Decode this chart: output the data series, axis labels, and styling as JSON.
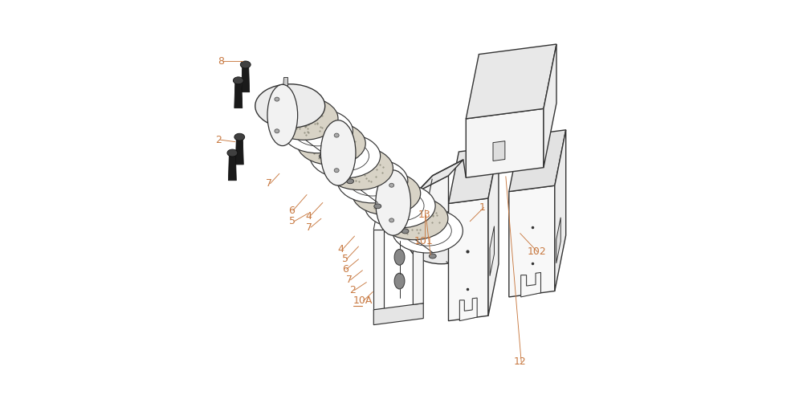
{
  "bg_color": "#ffffff",
  "line_color": "#333333",
  "label_color": "#c87941",
  "fig_width": 10.0,
  "fig_height": 4.97
}
